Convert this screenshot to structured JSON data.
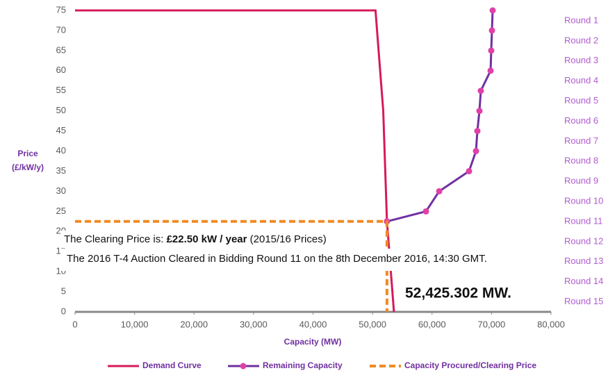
{
  "chart_data": {
    "type": "line",
    "xlabel": "Capacity (MW)",
    "ylabel": [
      "Price",
      "(£/kW/y)"
    ],
    "xlim": [
      0,
      80000
    ],
    "ylim": [
      0,
      75
    ],
    "xticks": [
      0,
      {
        "value": 10000,
        "label": "10,000"
      },
      {
        "value": 20000,
        "label": "20,000"
      },
      {
        "value": 30000,
        "label": "30,000"
      },
      {
        "value": 40000,
        "label": "40,000"
      },
      {
        "value": 50000,
        "label": "50,000"
      },
      {
        "value": 60000,
        "label": "60,000"
      },
      {
        "value": 70000,
        "label": "70,000"
      },
      {
        "value": 80000,
        "label": "80,000"
      }
    ],
    "yticks": [
      0,
      5,
      10,
      15,
      20,
      25,
      30,
      35,
      40,
      45,
      50,
      55,
      60,
      65,
      70,
      75
    ],
    "grid": false,
    "round_labels": [
      "Round 1",
      "Round 2",
      "Round 3",
      "Round 4",
      "Round 5",
      "Round 6",
      "Round 7",
      "Round 8",
      "Round 9",
      "Round 10",
      "Round 11",
      "Round 12",
      "Round 13",
      "Round 14",
      "Round 15"
    ],
    "series": [
      {
        "name": "Demand Curve",
        "color": "#d6195b",
        "x": [
          0,
          50500,
          51800,
          52425,
          53600
        ],
        "values": [
          75,
          75,
          50,
          22.5,
          0
        ]
      },
      {
        "name": "Remaining Capacity",
        "color": "#7030a0",
        "marker_color": "#e040a8",
        "markers": true,
        "x": [
          70190,
          70070,
          69950,
          69840,
          68200,
          67970,
          67620,
          67390,
          66220,
          61200,
          58980,
          52425
        ],
        "values": [
          75,
          70,
          65,
          60,
          55,
          50,
          45,
          40,
          35,
          30,
          25,
          22.5
        ]
      },
      {
        "name": "Capacity Procured/Clearing Price",
        "color": "#f08a24",
        "dash": true,
        "x": [
          0,
          52425,
          52425
        ],
        "values": [
          22.5,
          22.5,
          0
        ]
      }
    ],
    "annotations": {
      "price_prefix": "The Clearing Price is: ",
      "price_bold": "£22.50 kW / year",
      "price_suffix": " (2015/16 Prices)",
      "round_text": "The 2016 T-4 Auction Cleared in Bidding Round 11 on the 8th December 2016, 14:30 GMT.",
      "capacity_text": "52,425.302 MW."
    }
  }
}
